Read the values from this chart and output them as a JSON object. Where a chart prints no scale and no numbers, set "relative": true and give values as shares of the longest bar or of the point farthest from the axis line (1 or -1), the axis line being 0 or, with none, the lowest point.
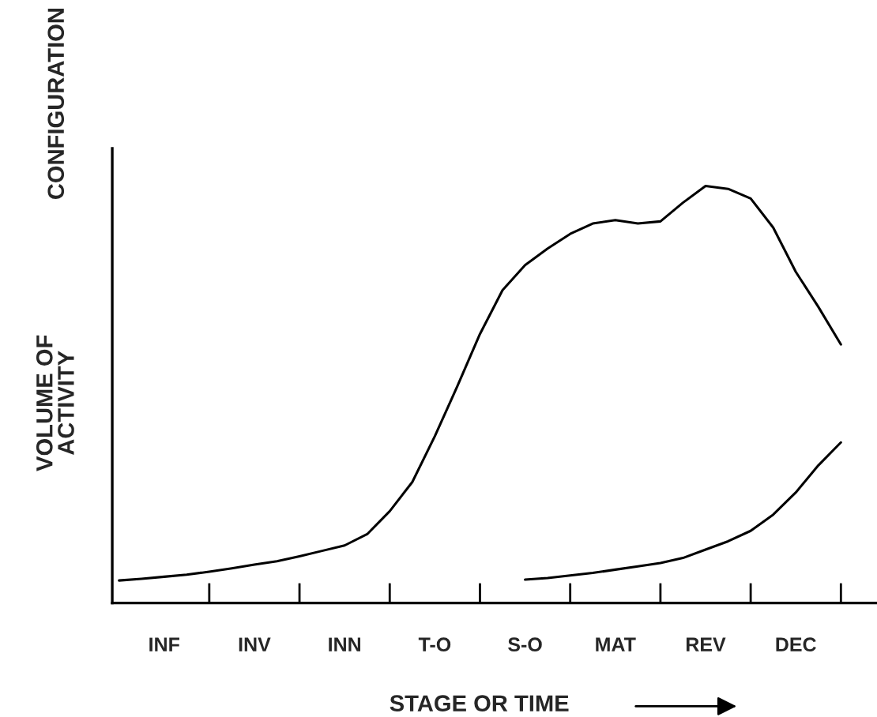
{
  "chart_data": {
    "type": "line",
    "relative": true,
    "xlabel": "STAGE OR TIME",
    "ylabel": "VOLUME OF\nACTIVITY",
    "annotations": [
      "CONFIGURATION"
    ],
    "categories": [
      null,
      null,
      "INF",
      null,
      null,
      null,
      "INV",
      null,
      null,
      null,
      "INN",
      null,
      null,
      null,
      "T-O",
      null,
      null,
      null,
      "S-O",
      null,
      null,
      null,
      "MAT",
      null,
      null,
      null,
      "REV",
      null,
      null,
      null,
      "DEC",
      null,
      null,
      null
    ],
    "grid": false,
    "legend": false,
    "marker": "none",
    "line_style": "solid",
    "series": [
      {
        "color": "#000000",
        "values": [
          0.054,
          0.058,
          0.063,
          0.068,
          0.075,
          0.083,
          0.092,
          0.1,
          0.112,
          0.125,
          0.138,
          0.165,
          0.22,
          0.29,
          0.4,
          0.52,
          0.645,
          0.75,
          0.81,
          0.85,
          0.885,
          0.91,
          0.918,
          0.91,
          0.915,
          0.96,
          1,
          0.993,
          0.97,
          0.9,
          0.794,
          0.71,
          0.62,
          null
        ]
      },
      {
        "color": "#000000",
        "values": [
          null,
          null,
          null,
          null,
          null,
          null,
          null,
          null,
          null,
          null,
          null,
          null,
          null,
          null,
          null,
          null,
          null,
          null,
          0.056,
          0.06,
          0.066,
          0.072,
          0.08,
          0.088,
          0.096,
          0.108,
          0.128,
          0.148,
          0.173,
          0.212,
          0.265,
          0.33,
          0.385,
          null
        ]
      }
    ]
  }
}
